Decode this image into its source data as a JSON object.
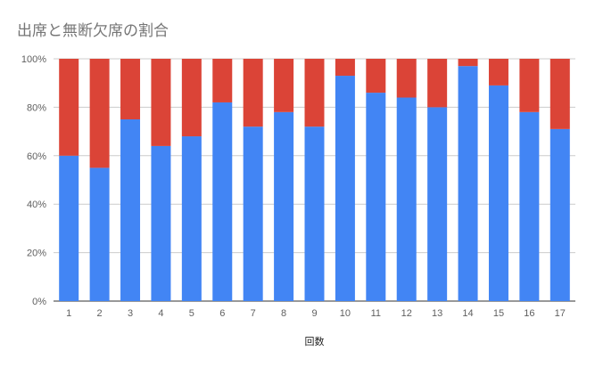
{
  "chart_data": {
    "type": "bar",
    "stacked": true,
    "percent_stacked": true,
    "title": "出席と無断欠席の割合",
    "xlabel": "回数",
    "ylabel": "",
    "ylim": [
      0,
      100
    ],
    "y_ticks": [
      "0%",
      "20%",
      "40%",
      "60%",
      "80%",
      "100%"
    ],
    "grid": true,
    "legend": "none",
    "categories": [
      "1",
      "2",
      "3",
      "4",
      "5",
      "6",
      "7",
      "8",
      "9",
      "10",
      "11",
      "12",
      "13",
      "14",
      "15",
      "16",
      "17"
    ],
    "series": [
      {
        "color": "#4285f4",
        "values": [
          60,
          55,
          75,
          64,
          68,
          82,
          72,
          78,
          72,
          93,
          86,
          84,
          80,
          97,
          89,
          78,
          71
        ]
      },
      {
        "color": "#db4437",
        "values": [
          40,
          45,
          25,
          36,
          32,
          18,
          28,
          22,
          28,
          7,
          14,
          16,
          20,
          3,
          11,
          22,
          29
        ]
      }
    ]
  }
}
